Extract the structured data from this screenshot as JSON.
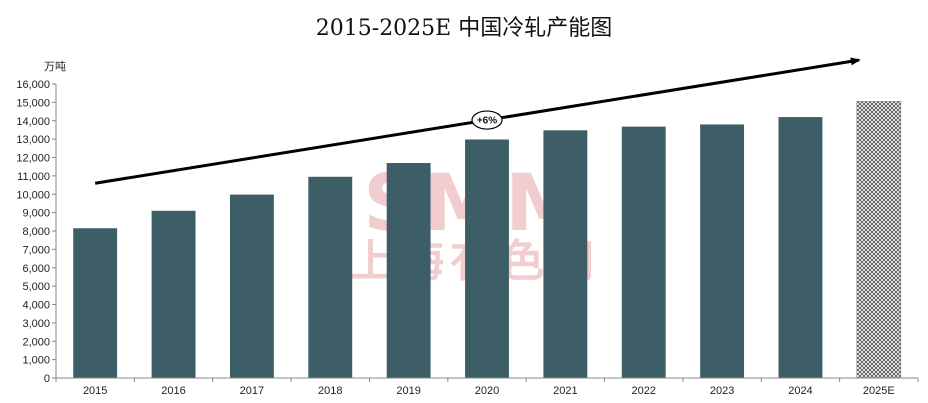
{
  "chart_data": {
    "type": "bar",
    "title": "2015-2025E 中国冷轧产能图",
    "ylabel": "万吨",
    "xlabel": "",
    "categories": [
      "2015",
      "2016",
      "2017",
      "2018",
      "2019",
      "2020",
      "2021",
      "2022",
      "2023",
      "2024",
      "2025E"
    ],
    "values": [
      8150,
      9100,
      9980,
      10950,
      11700,
      12980,
      13480,
      13680,
      13800,
      14200,
      15050
    ],
    "ylim": [
      0,
      16000
    ],
    "yticks": [
      0,
      1000,
      2000,
      3000,
      4000,
      5000,
      6000,
      7000,
      8000,
      9000,
      10000,
      11000,
      12000,
      13000,
      14000,
      15000,
      16000
    ],
    "ytick_labels": [
      "0",
      "1,000",
      "2,000",
      "3,000",
      "4,000",
      "5,000",
      "6,000",
      "7,000",
      "8,000",
      "9,000",
      "10,000",
      "11,000",
      "12,000",
      "13,000",
      "14,000",
      "15,000",
      "16,000"
    ],
    "grid": false,
    "colors": {
      "bar": "#3d5e66",
      "forecast_pattern_fg": "#555555",
      "forecast_pattern_bg": "#ffffff",
      "trend_arrow": "#000000"
    },
    "forecast_categories": [
      "2025E"
    ],
    "annotation": {
      "text": "+6%",
      "trend_start": {
        "x": "2015",
        "y": 10600
      },
      "trend_end": {
        "x": "2025E",
        "y": 17300
      }
    },
    "watermark": {
      "line1": "SMM",
      "line2": "上海有色网",
      "color": "#e7a5a8"
    }
  }
}
